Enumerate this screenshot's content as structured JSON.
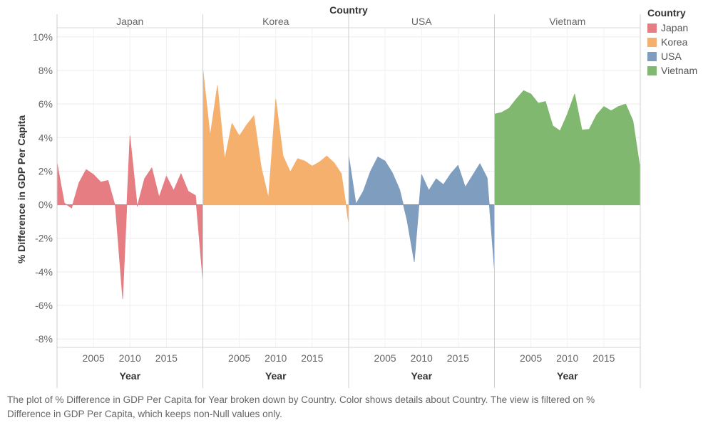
{
  "chart_data": {
    "type": "area",
    "title": "Country",
    "xlabel": "Year",
    "ylabel": "% Difference in GDP Per Capita",
    "ylim": [
      -8.5,
      10.5
    ],
    "yticks": [
      10,
      8,
      6,
      4,
      2,
      0,
      -2,
      -4,
      -6,
      -8
    ],
    "ytick_labels": [
      "10%",
      "8%",
      "6%",
      "4%",
      "2%",
      "0%",
      "-2%",
      "-4%",
      "-6%",
      "-8%"
    ],
    "xlim": [
      2000,
      2020
    ],
    "xticks": [
      2005,
      2010,
      2015
    ],
    "xtick_labels": [
      "2005",
      "2010",
      "2015"
    ],
    "x": [
      2000,
      2001,
      2002,
      2003,
      2004,
      2005,
      2006,
      2007,
      2008,
      2009,
      2010,
      2011,
      2012,
      2013,
      2014,
      2015,
      2016,
      2017,
      2018,
      2019,
      2020
    ],
    "series": [
      {
        "name": "Japan",
        "color": "#e57d83",
        "values": [
          2.5,
          0.1,
          -0.2,
          1.3,
          2.1,
          1.8,
          1.35,
          1.45,
          -0.1,
          -5.6,
          4.1,
          -0.1,
          1.55,
          2.2,
          0.45,
          1.7,
          0.85,
          1.85,
          0.8,
          0.55,
          -4.5
        ]
      },
      {
        "name": "Korea",
        "color": "#f5b06e",
        "values": [
          8.1,
          4.1,
          7.1,
          2.7,
          4.85,
          4.1,
          4.75,
          5.3,
          2.25,
          0.4,
          6.3,
          2.9,
          1.95,
          2.75,
          2.6,
          2.3,
          2.55,
          2.9,
          2.5,
          1.85,
          -1.1
        ]
      },
      {
        "name": "USA",
        "color": "#7f9dbf",
        "values": [
          2.95,
          0.05,
          0.8,
          2.0,
          2.85,
          2.6,
          1.9,
          0.9,
          -0.9,
          -3.4,
          1.8,
          0.85,
          1.55,
          1.2,
          1.85,
          2.35,
          1.05,
          1.75,
          2.45,
          1.6,
          -3.9
        ]
      },
      {
        "name": "Vietnam",
        "color": "#80b86f",
        "values": [
          5.4,
          5.5,
          5.75,
          6.3,
          6.8,
          6.6,
          6.05,
          6.15,
          4.7,
          4.4,
          5.4,
          6.6,
          4.45,
          4.5,
          5.35,
          5.85,
          5.6,
          5.85,
          6.0,
          5.0,
          2.1
        ]
      }
    ]
  },
  "legend": {
    "title": "Country",
    "items": [
      {
        "label": "Japan",
        "color": "#e57d83"
      },
      {
        "label": "Korea",
        "color": "#f5b06e"
      },
      {
        "label": "USA",
        "color": "#7f9dbf"
      },
      {
        "label": "Vietnam",
        "color": "#80b86f"
      }
    ]
  },
  "caption": {
    "text": "The plot of % Difference in GDP Per Capita for Year broken down by Country.  Color shows details about Country. The view is filtered on % Difference in GDP Per Capita, which keeps non-Null values only."
  }
}
